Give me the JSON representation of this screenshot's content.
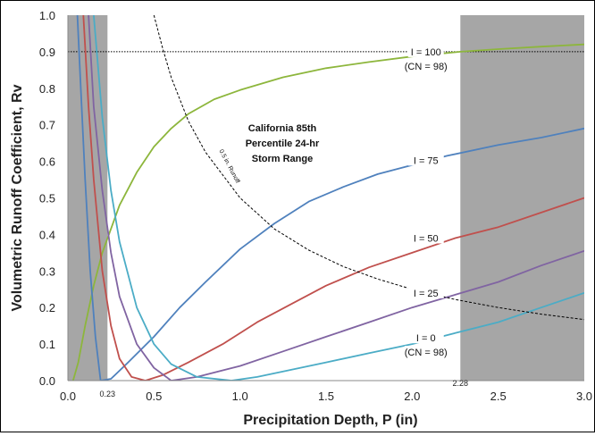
{
  "chart_data": {
    "type": "line",
    "xlabel": "Precipitation Depth, P (in)",
    "ylabel": "Volumetric Runoff Coefficient, Rv",
    "xlim": [
      0,
      3.0
    ],
    "ylim": [
      0,
      1.0
    ],
    "x_ticks": [
      "0.0",
      "0.5",
      "1.0",
      "1.5",
      "2.0",
      "2.5",
      "3.0"
    ],
    "y_ticks": [
      "0.0",
      "0.1",
      "0.2",
      "0.3",
      "0.4",
      "0.5",
      "0.6",
      "0.7",
      "0.8",
      "0.9",
      "1.0"
    ],
    "shaded_ranges": [
      [
        0,
        0.23
      ],
      [
        2.28,
        3.0
      ]
    ],
    "range_labels": [
      "0.23",
      "2.28"
    ],
    "reference_line_y": 0.9,
    "series": [
      {
        "name": "I = 100",
        "sublabel": "(CN = 98)",
        "color": "#8db63c",
        "points": [
          [
            0.03,
            0.0
          ],
          [
            0.06,
            0.05
          ],
          [
            0.1,
            0.15
          ],
          [
            0.15,
            0.26
          ],
          [
            0.2,
            0.35
          ],
          [
            0.3,
            0.48
          ],
          [
            0.4,
            0.57
          ],
          [
            0.5,
            0.64
          ],
          [
            0.6,
            0.69
          ],
          [
            0.7,
            0.73
          ],
          [
            0.85,
            0.77
          ],
          [
            1.0,
            0.795
          ],
          [
            1.25,
            0.83
          ],
          [
            1.5,
            0.855
          ],
          [
            1.75,
            0.872
          ],
          [
            2.0,
            0.887
          ],
          [
            2.28,
            0.9
          ],
          [
            2.5,
            0.907
          ],
          [
            2.75,
            0.914
          ],
          [
            3.0,
            0.92
          ]
        ]
      },
      {
        "name": "I = 75",
        "color": "#4f81bd",
        "points": [
          [
            0.19,
            0.0
          ],
          [
            0.25,
            0.005
          ],
          [
            0.35,
            0.05
          ],
          [
            0.5,
            0.12
          ],
          [
            0.65,
            0.2
          ],
          [
            0.8,
            0.27
          ],
          [
            1.0,
            0.36
          ],
          [
            1.2,
            0.43
          ],
          [
            1.4,
            0.49
          ],
          [
            1.6,
            0.53
          ],
          [
            1.8,
            0.565
          ],
          [
            2.0,
            0.59
          ],
          [
            2.2,
            0.615
          ],
          [
            2.5,
            0.645
          ],
          [
            2.75,
            0.665
          ],
          [
            3.0,
            0.69
          ]
        ]
      },
      {
        "name": "I = 50",
        "color": "#c0504d",
        "points": [
          [
            0.45,
            0.0
          ],
          [
            0.55,
            0.015
          ],
          [
            0.7,
            0.05
          ],
          [
            0.9,
            0.1
          ],
          [
            1.1,
            0.16
          ],
          [
            1.3,
            0.21
          ],
          [
            1.5,
            0.26
          ],
          [
            1.75,
            0.31
          ],
          [
            2.0,
            0.35
          ],
          [
            2.25,
            0.39
          ],
          [
            2.5,
            0.42
          ],
          [
            2.75,
            0.46
          ],
          [
            3.0,
            0.5
          ]
        ]
      },
      {
        "name": "I = 25",
        "color": "#8064a2",
        "points": [
          [
            0.6,
            0.0
          ],
          [
            0.75,
            0.01
          ],
          [
            1.0,
            0.04
          ],
          [
            1.25,
            0.08
          ],
          [
            1.5,
            0.12
          ],
          [
            1.75,
            0.16
          ],
          [
            2.0,
            0.2
          ],
          [
            2.25,
            0.235
          ],
          [
            2.5,
            0.27
          ],
          [
            2.75,
            0.315
          ],
          [
            3.0,
            0.355
          ]
        ]
      },
      {
        "name": "I = 0",
        "sublabel": "(CN = 98)",
        "color": "#4bacc6",
        "points": [
          [
            0.95,
            0.0
          ],
          [
            1.1,
            0.01
          ],
          [
            1.3,
            0.03
          ],
          [
            1.5,
            0.05
          ],
          [
            1.75,
            0.075
          ],
          [
            2.0,
            0.1
          ],
          [
            2.25,
            0.13
          ],
          [
            2.5,
            0.16
          ],
          [
            2.75,
            0.2
          ],
          [
            3.0,
            0.24
          ]
        ]
      },
      {
        "name": "",
        "color": "#4f81bd",
        "points": [
          [
            0.055,
            1.0
          ],
          [
            0.08,
            0.75
          ],
          [
            0.1,
            0.55
          ],
          [
            0.13,
            0.3
          ],
          [
            0.16,
            0.12
          ],
          [
            0.19,
            0.0
          ]
        ]
      },
      {
        "name": "",
        "color": "#c0504d",
        "points": [
          [
            0.09,
            1.0
          ],
          [
            0.12,
            0.75
          ],
          [
            0.15,
            0.55
          ],
          [
            0.2,
            0.3
          ],
          [
            0.25,
            0.15
          ],
          [
            0.3,
            0.06
          ],
          [
            0.37,
            0.01
          ],
          [
            0.45,
            0.0
          ]
        ]
      },
      {
        "name": "",
        "color": "#8064a2",
        "points": [
          [
            0.12,
            1.0
          ],
          [
            0.15,
            0.75
          ],
          [
            0.2,
            0.52
          ],
          [
            0.25,
            0.35
          ],
          [
            0.3,
            0.23
          ],
          [
            0.4,
            0.1
          ],
          [
            0.5,
            0.035
          ],
          [
            0.6,
            0.0
          ]
        ]
      },
      {
        "name": "",
        "color": "#4bacc6",
        "points": [
          [
            0.15,
            1.0
          ],
          [
            0.2,
            0.72
          ],
          [
            0.25,
            0.52
          ],
          [
            0.3,
            0.38
          ],
          [
            0.4,
            0.2
          ],
          [
            0.5,
            0.1
          ],
          [
            0.6,
            0.045
          ],
          [
            0.75,
            0.01
          ],
          [
            0.95,
            0.0
          ]
        ]
      }
    ],
    "runoff_curve": {
      "label": "0.5 in. Runoff",
      "color": "#000000",
      "points": [
        [
          0.5,
          1.0
        ],
        [
          0.55,
          0.91
        ],
        [
          0.6,
          0.83
        ],
        [
          0.7,
          0.71
        ],
        [
          0.8,
          0.625
        ],
        [
          1.0,
          0.5
        ],
        [
          1.2,
          0.415
        ],
        [
          1.4,
          0.357
        ],
        [
          1.6,
          0.312
        ],
        [
          1.8,
          0.278
        ],
        [
          2.0,
          0.25
        ],
        [
          2.25,
          0.222
        ],
        [
          2.5,
          0.2
        ],
        [
          2.75,
          0.182
        ],
        [
          3.0,
          0.167
        ]
      ]
    },
    "annotation": [
      "California 85th",
      "Percentile 24-hr",
      "Storm Range"
    ]
  }
}
